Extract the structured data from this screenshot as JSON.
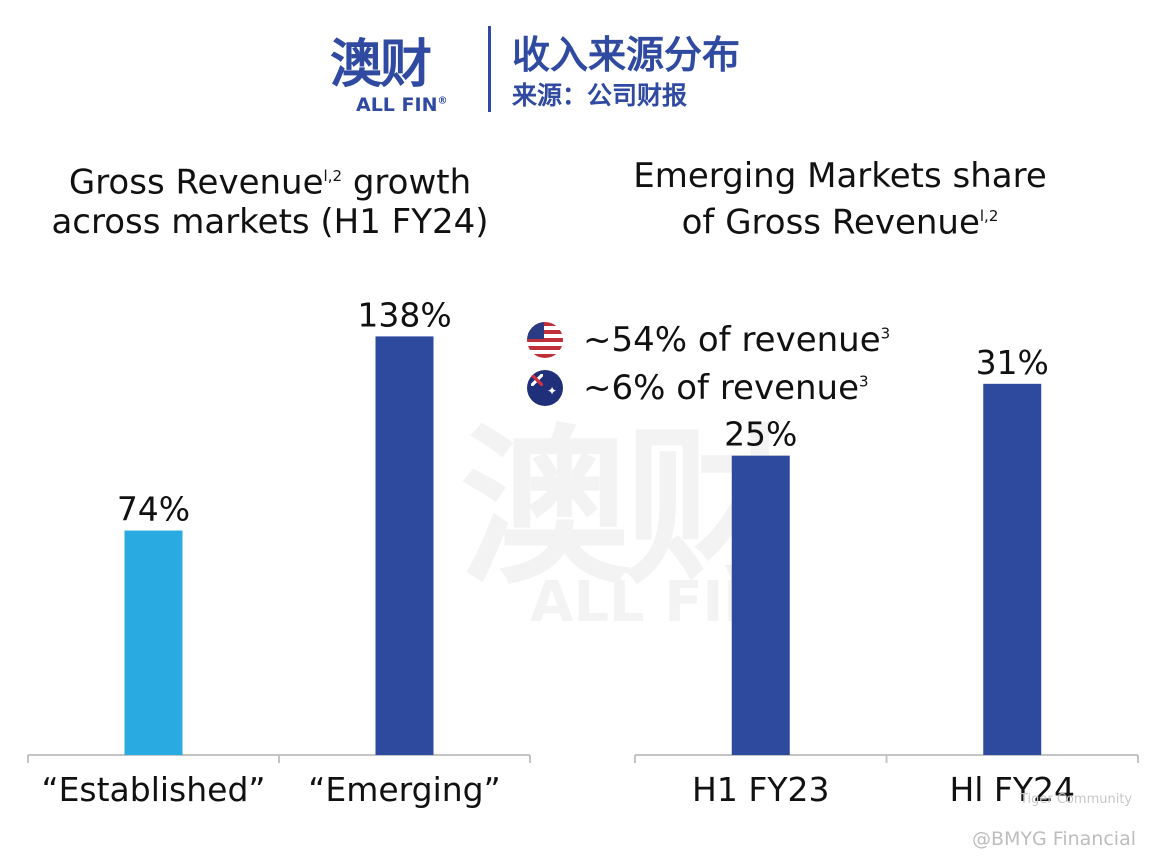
{
  "header": {
    "logo_text": "澳财",
    "logo_subtext": "ALL FIN",
    "logo_mark": "®",
    "title": "收入来源分布",
    "source": "来源：公司财报"
  },
  "watermark": {
    "text_cn": "澳财",
    "text_en": "ALL FIN"
  },
  "legend": {
    "items": [
      {
        "flag_icon": "us-flag-icon",
        "label": "~54% of revenue",
        "sup": "3"
      },
      {
        "flag_icon": "au-flag-icon",
        "label": "~6% of revenue",
        "sup": "3"
      }
    ]
  },
  "credits": {
    "line1": "Tiger Community",
    "line2": "@BMYG Financial"
  },
  "chart_data": [
    {
      "type": "bar",
      "title": "Gross Revenue growth across markets (H1 FY24)",
      "title_parts": {
        "line1_a": "Gross Revenue",
        "line1_sup": "l,2",
        "line1_b": " growth",
        "line2": "across markets (H1 FY24)"
      },
      "categories": [
        "“Established”",
        "“Emerging”"
      ],
      "values": [
        74,
        138
      ],
      "value_labels": [
        "74%",
        "138%"
      ],
      "colors": [
        "#29abe2",
        "#2e4a9e"
      ],
      "ylim": [
        0,
        150
      ],
      "grid": false
    },
    {
      "type": "bar",
      "title": "Emerging Markets share of Gross Revenue",
      "title_parts": {
        "line1": "Emerging Markets share",
        "line2_a": "of Gross Revenue",
        "line2_sup": "l,2"
      },
      "categories": [
        "H1 FY23",
        "Hl FY24"
      ],
      "values": [
        25,
        31
      ],
      "value_labels": [
        "25%",
        "31%"
      ],
      "colors": [
        "#2e4a9e",
        "#2e4a9e"
      ],
      "ylim": [
        0,
        38
      ],
      "grid": false
    }
  ]
}
